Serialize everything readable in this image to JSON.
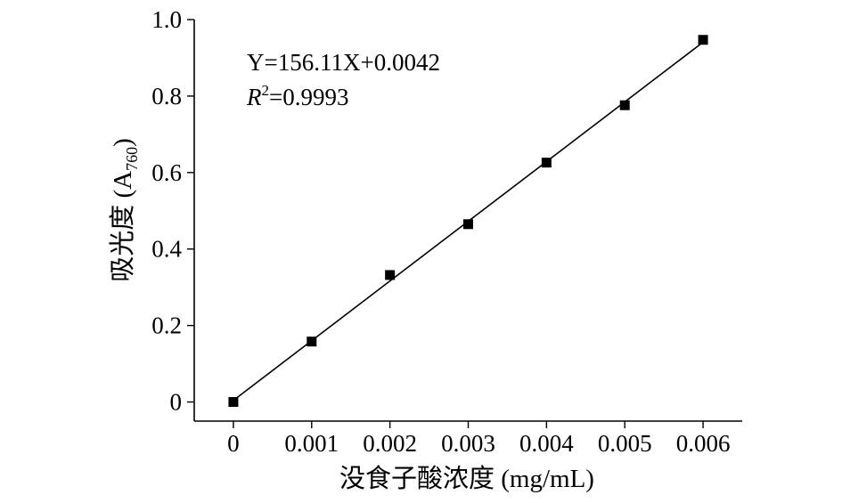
{
  "chart_data": {
    "type": "scatter",
    "xlabel": "没食子酸浓度 (mg/mL)",
    "ylabel": {
      "main": "吸光度 (A",
      "sub": "760",
      "close": ")"
    },
    "xlim": [
      -0.0005,
      0.0065
    ],
    "ylim": [
      -0.05,
      1.0
    ],
    "xticks": [
      0,
      0.001,
      0.002,
      0.003,
      0.004,
      0.005,
      0.006
    ],
    "xtick_labels": [
      "0",
      "0.001",
      "0.002",
      "0.003",
      "0.004",
      "0.005",
      "0.006"
    ],
    "yticks": [
      0,
      0.2,
      0.4,
      0.6,
      0.8,
      1.0
    ],
    "ytick_labels": [
      "0",
      "0.2",
      "0.4",
      "0.6",
      "0.8",
      "1.0"
    ],
    "grid": false,
    "series": [
      {
        "marker": "square",
        "x": [
          0,
          0.001,
          0.002,
          0.003,
          0.004,
          0.005,
          0.006
        ],
        "y": [
          0.0,
          0.158,
          0.332,
          0.465,
          0.626,
          0.776,
          0.947
        ]
      }
    ],
    "fit": {
      "slope": 156.11,
      "intercept": 0.0042,
      "x_range": [
        0,
        0.006
      ]
    },
    "annotations": {
      "equation": "Y=156.11X+0.0042",
      "r2_label": "R",
      "r2_sup": "2",
      "r2_value": "=0.9993"
    },
    "color": "#000000"
  }
}
